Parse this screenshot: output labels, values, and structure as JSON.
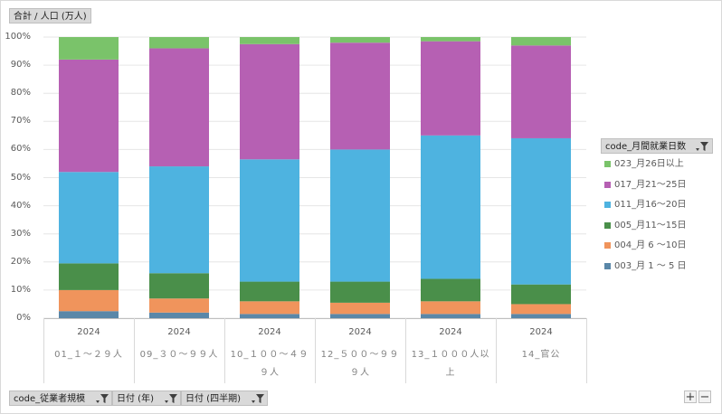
{
  "header": {
    "value_field": "合計 / 人口 (万人)"
  },
  "legend": {
    "field": "code_月間就業日数",
    "items": [
      {
        "label": "023_月26日以上",
        "color": "#7ac36a"
      },
      {
        "label": "017_月21～25日",
        "color": "#b660b3"
      },
      {
        "label": "011_月16～20日",
        "color": "#4eb3e0"
      },
      {
        "label": "005_月11～15日",
        "color": "#4a8f4a"
      },
      {
        "label": "004_月 6 ～10日",
        "color": "#f0945c"
      },
      {
        "label": "003_月 1 ～ 5 日",
        "color": "#5a87a8"
      }
    ]
  },
  "footer": {
    "row_fields": [
      "code_従業者規模",
      "日付 (年)",
      "日付 (四半期)"
    ],
    "zoom_in": "+",
    "zoom_out": "−"
  },
  "chart_data": {
    "type": "bar",
    "stacked": "percent",
    "title": "",
    "xlabel": "",
    "ylabel": "",
    "ylim": [
      0,
      100
    ],
    "yticks": [
      "0%",
      "10%",
      "20%",
      "30%",
      "40%",
      "50%",
      "60%",
      "70%",
      "80%",
      "90%",
      "100%"
    ],
    "grid": true,
    "legend_position": "right",
    "categories": [
      {
        "year": "2024",
        "lines": [
          "01_１～２９人"
        ]
      },
      {
        "year": "2024",
        "lines": [
          "09_３０～９９人"
        ]
      },
      {
        "year": "2024",
        "lines": [
          "10_１００～４９",
          "９人"
        ]
      },
      {
        "year": "2024",
        "lines": [
          "12_５００～９９",
          "９人"
        ]
      },
      {
        "year": "2024",
        "lines": [
          "13_１０００人以",
          "上"
        ]
      },
      {
        "year": "2024",
        "lines": [
          "14_官公"
        ]
      }
    ],
    "series": [
      {
        "name": "003_月 1 ～ 5 日",
        "values": [
          2.5,
          2,
          1.5,
          1.5,
          1.5,
          1.5
        ]
      },
      {
        "name": "004_月 6 ～10日",
        "values": [
          7.5,
          5,
          4.5,
          4,
          4.5,
          3.5
        ]
      },
      {
        "name": "005_月11～15日",
        "values": [
          9.5,
          9,
          7,
          7.5,
          8,
          7
        ]
      },
      {
        "name": "011_月16～20日",
        "values": [
          32.5,
          38,
          43.5,
          47,
          51,
          52
        ]
      },
      {
        "name": "017_月21～25日",
        "values": [
          40,
          42,
          41,
          38,
          33.5,
          33
        ]
      },
      {
        "name": "023_月26日以上",
        "values": [
          8,
          4,
          2.5,
          2,
          1.5,
          3
        ]
      }
    ]
  }
}
